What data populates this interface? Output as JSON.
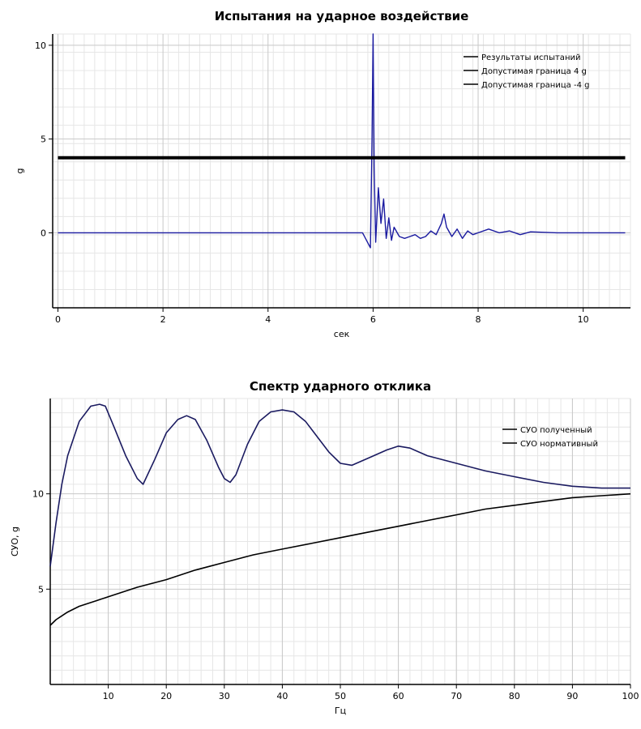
{
  "chart_data": [
    {
      "type": "line",
      "title": "Испытания на ударное воздействие",
      "xlabel": "сек",
      "ylabel": "g",
      "xlim": [
        -0.1,
        10.9
      ],
      "ylim": [
        -4,
        10.6
      ],
      "grid": true,
      "legend_position": "top-right",
      "x_ticks": [
        "0",
        "2",
        "4",
        "6",
        "8",
        "10"
      ],
      "x_tick_values": [
        0,
        2,
        4,
        6,
        8,
        10
      ],
      "y_ticks": [
        "10",
        "5",
        "0"
      ],
      "y_tick_values": [
        10,
        5,
        0
      ],
      "series": [
        {
          "name": "Результаты испытаний",
          "color": "#1a1aa0",
          "x": [
            0,
            1,
            2,
            3,
            4,
            5,
            5.8,
            5.95,
            5.98,
            6.0,
            6.02,
            6.05,
            6.1,
            6.15,
            6.2,
            6.25,
            6.3,
            6.35,
            6.4,
            6.5,
            6.6,
            6.7,
            6.8,
            6.9,
            7.0,
            7.1,
            7.2,
            7.3,
            7.35,
            7.4,
            7.5,
            7.6,
            7.7,
            7.8,
            7.9,
            8.0,
            8.2,
            8.4,
            8.6,
            8.8,
            9.0,
            9.5,
            10.0,
            10.5,
            10.8
          ],
          "y": [
            0,
            0,
            0,
            0,
            0,
            0,
            0,
            -0.8,
            5.0,
            10.6,
            3.5,
            -0.5,
            2.4,
            0.5,
            1.8,
            -0.3,
            0.8,
            -0.4,
            0.3,
            -0.2,
            -0.3,
            -0.2,
            -0.1,
            -0.3,
            -0.2,
            0.1,
            -0.1,
            0.5,
            1.0,
            0.3,
            -0.2,
            0.2,
            -0.3,
            0.1,
            -0.1,
            0.0,
            0.2,
            0.0,
            0.1,
            -0.1,
            0.05,
            0,
            0,
            0,
            0
          ]
        },
        {
          "name": "Допустимая граница 4 g",
          "color": "#000000",
          "x": [
            0,
            10.8
          ],
          "y": [
            4,
            4
          ]
        },
        {
          "name": "Допустимая граница -4 g",
          "color": "#000000",
          "x": [],
          "y": []
        }
      ]
    },
    {
      "type": "line",
      "title": "Спектр ударного отклика",
      "xlabel": "Гц",
      "ylabel": "СУО, g",
      "xlim": [
        0,
        100
      ],
      "ylim": [
        0,
        15
      ],
      "grid": true,
      "legend_position": "top-right",
      "x_ticks": [
        "10",
        "20",
        "30",
        "40",
        "50",
        "60",
        "70",
        "80",
        "90",
        "100"
      ],
      "x_tick_values": [
        10,
        20,
        30,
        40,
        50,
        60,
        70,
        80,
        90,
        100
      ],
      "y_ticks": [
        "10",
        "5"
      ],
      "y_tick_values": [
        10,
        5
      ],
      "series": [
        {
          "name": "СУО полученный",
          "color": "#1a1a60",
          "x": [
            0,
            1,
            2,
            3,
            5,
            7,
            8.5,
            9.5,
            11,
            13,
            15,
            16,
            18,
            20,
            22,
            23.5,
            25,
            27,
            29,
            30,
            31,
            32,
            34,
            36,
            38,
            40,
            42,
            44,
            46,
            48,
            50,
            52,
            55,
            58,
            60,
            62,
            65,
            70,
            75,
            80,
            85,
            90,
            95,
            100
          ],
          "y": [
            6.2,
            8.5,
            10.5,
            12.0,
            13.8,
            14.6,
            14.7,
            14.6,
            13.5,
            12.0,
            10.8,
            10.5,
            11.8,
            13.2,
            13.9,
            14.1,
            13.9,
            12.8,
            11.4,
            10.8,
            10.6,
            11.0,
            12.6,
            13.8,
            14.3,
            14.4,
            14.3,
            13.8,
            13.0,
            12.2,
            11.6,
            11.5,
            11.9,
            12.3,
            12.5,
            12.4,
            12.0,
            11.6,
            11.2,
            10.9,
            10.6,
            10.4,
            10.3,
            10.3
          ]
        },
        {
          "name": "СУО нормативный",
          "color": "#000000",
          "x": [
            0,
            1,
            3,
            5,
            8,
            10,
            15,
            20,
            25,
            30,
            35,
            40,
            45,
            50,
            55,
            60,
            65,
            70,
            75,
            80,
            85,
            90,
            95,
            100
          ],
          "y": [
            3.1,
            3.4,
            3.8,
            4.1,
            4.4,
            4.6,
            5.1,
            5.5,
            6.0,
            6.4,
            6.8,
            7.1,
            7.4,
            7.7,
            8.0,
            8.3,
            8.6,
            8.9,
            9.2,
            9.4,
            9.6,
            9.8,
            9.9,
            10.0
          ]
        }
      ]
    }
  ]
}
